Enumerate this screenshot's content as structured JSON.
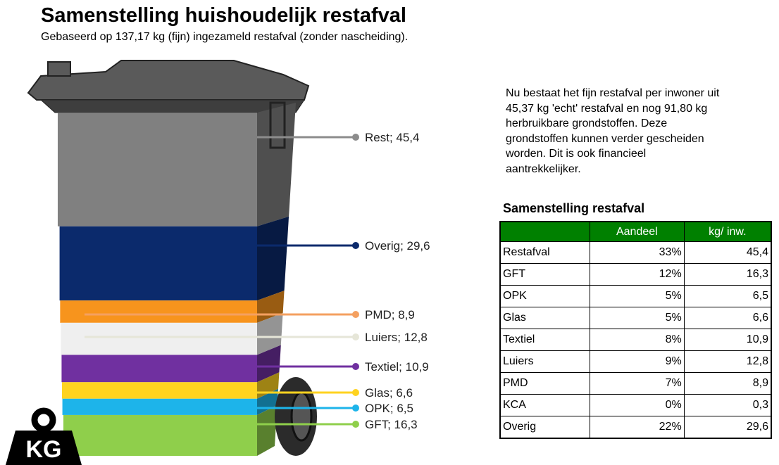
{
  "chart_data": {
    "type": "stacked-bin",
    "title": "Samenstelling huishoudelijk restafval",
    "subtitle": "Gebaseerd op 137,17 kg (fijn) ingezameld restafval (zonder nascheiding).",
    "icon_label": "KG",
    "segments": [
      {
        "label": "Rest; 45,4",
        "value": 45.4,
        "color": "#808080",
        "dot": "#8c8c8c"
      },
      {
        "label": "Overig; 29,6",
        "value": 29.6,
        "color": "#0b2a6c",
        "dot": "#0b2a6c"
      },
      {
        "label": "PMD; 8,9",
        "value": 8.9,
        "color": "#f7941d",
        "dot": "#f4a060"
      },
      {
        "label": "Luiers; 12,8",
        "value": 12.8,
        "color": "#efefef",
        "dot": "#e6e6d8"
      },
      {
        "label": "Textiel; 10,9",
        "value": 10.9,
        "color": "#7030a0",
        "dot": "#7030a0"
      },
      {
        "label": "Glas; 6,6",
        "value": 6.6,
        "color": "#ffd320",
        "dot": "#ffd320"
      },
      {
        "label": "OPK; 6,5",
        "value": 6.5,
        "color": "#1db4ea",
        "dot": "#1db4ea"
      },
      {
        "label": "GFT; 16,3",
        "value": 16.3,
        "color": "#8fcf4b",
        "dot": "#8fcf4b"
      }
    ]
  },
  "paragraph": [
    "Nu bestaat het fijn restafval per inwoner uit",
    "45,37 kg 'echt' restafval en nog 91,80 kg",
    "herbruikbare grondstoffen. Deze",
    "grondstoffen kunnen verder gescheiden",
    "worden. Dit is ook financieel",
    "aantrekkelijker."
  ],
  "table": {
    "title": "Samenstelling restafval",
    "header": [
      "Aandeel",
      "kg/ inw."
    ],
    "rows": [
      [
        "Restafval",
        "33%",
        "45,4"
      ],
      [
        "GFT",
        "12%",
        "16,3"
      ],
      [
        "OPK",
        "5%",
        "6,5"
      ],
      [
        "Glas",
        "5%",
        "6,6"
      ],
      [
        "Textiel",
        "8%",
        "10,9"
      ],
      [
        "Luiers",
        "9%",
        "12,8"
      ],
      [
        "PMD",
        "7%",
        "8,9"
      ],
      [
        "KCA",
        "0%",
        "0,3"
      ],
      [
        "Overig",
        "22%",
        "29,6"
      ]
    ]
  }
}
